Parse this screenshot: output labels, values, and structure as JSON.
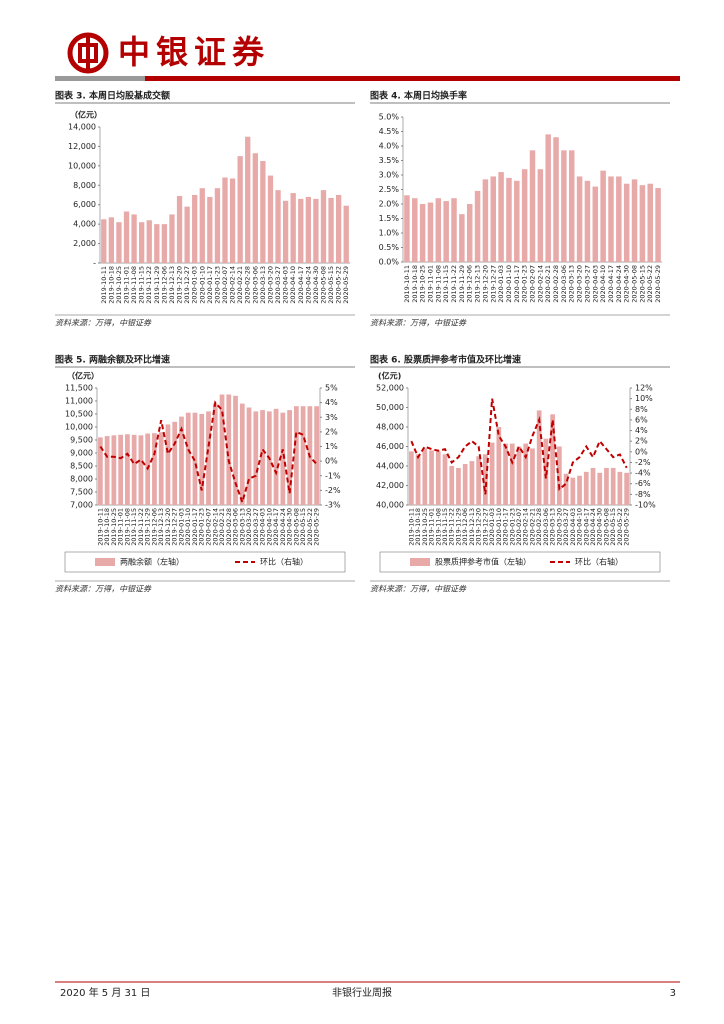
{
  "header": {
    "brand": "中银证券"
  },
  "chart_data": [
    {
      "type": "bar",
      "figure_title": "图表 3. 本周日均股基成交额",
      "unit": "（亿元）",
      "source": "资料来源：万得，中银证券",
      "color": "#e8a9a9",
      "categories": [
        "2019-10-11",
        "2019-10-18",
        "2019-10-25",
        "2019-11-01",
        "2019-11-08",
        "2019-11-15",
        "2019-11-22",
        "2019-11-29",
        "2019-12-06",
        "2019-12-13",
        "2019-12-20",
        "2019-12-27",
        "2020-01-03",
        "2020-01-10",
        "2020-01-17",
        "2020-01-23",
        "2020-02-07",
        "2020-02-14",
        "2020-02-21",
        "2020-02-28",
        "2020-03-06",
        "2020-03-13",
        "2020-03-20",
        "2020-03-27",
        "2020-04-03",
        "2020-04-10",
        "2020-04-17",
        "2020-04-24",
        "2020-04-30",
        "2020-05-08",
        "2020-05-15",
        "2020-05-22",
        "2020-05-29"
      ],
      "values": [
        4500,
        4700,
        4200,
        5300,
        5000,
        4200,
        4400,
        4000,
        4000,
        5000,
        6900,
        5800,
        7000,
        7700,
        6800,
        7700,
        8800,
        8700,
        11000,
        13000,
        11300,
        10500,
        9000,
        7500,
        6400,
        7200,
        6600,
        6800,
        6600,
        7500,
        6700,
        7000,
        5900
      ],
      "ylim": [
        0,
        14000
      ],
      "yticks": [
        {
          "value": 0,
          "label": "-"
        },
        {
          "value": 2000,
          "label": "2,000"
        },
        {
          "value": 4000,
          "label": "4,000"
        },
        {
          "value": 6000,
          "label": "6,000"
        },
        {
          "value": 8000,
          "label": "8,000"
        },
        {
          "value": 10000,
          "label": "10,000"
        },
        {
          "value": 12000,
          "label": "12,000"
        },
        {
          "value": 14000,
          "label": "14,000"
        }
      ]
    },
    {
      "type": "bar",
      "figure_title": "图表 4. 本周日均换手率",
      "source": "资料来源：万得，中银证券",
      "color": "#e8a9a9",
      "categories": [
        "2019-10-11",
        "2019-10-18",
        "2019-10-25",
        "2019-11-01",
        "2019-11-08",
        "2019-11-15",
        "2019-11-22",
        "2019-11-29",
        "2019-12-06",
        "2019-12-13",
        "2019-12-20",
        "2019-12-27",
        "2020-01-03",
        "2020-01-10",
        "2020-01-17",
        "2020-01-23",
        "2020-02-07",
        "2020-02-14",
        "2020-02-21",
        "2020-02-28",
        "2020-03-06",
        "2020-03-13",
        "2020-03-20",
        "2020-03-27",
        "2020-04-03",
        "2020-04-10",
        "2020-04-17",
        "2020-04-24",
        "2020-04-30",
        "2020-05-08",
        "2020-05-15",
        "2020-05-22",
        "2020-05-29"
      ],
      "values": [
        2.3,
        2.2,
        2.0,
        2.05,
        2.2,
        2.1,
        2.2,
        1.65,
        2.0,
        2.45,
        2.85,
        2.95,
        3.1,
        2.9,
        2.8,
        3.2,
        3.85,
        3.2,
        4.4,
        4.3,
        3.85,
        3.85,
        2.95,
        2.8,
        2.6,
        3.15,
        2.95,
        2.95,
        2.7,
        2.85,
        2.65,
        2.7,
        2.55
      ],
      "ylim": [
        0,
        5
      ],
      "yticks": [
        {
          "value": 0,
          "label": "0.0%"
        },
        {
          "value": 0.5,
          "label": "0.5%"
        },
        {
          "value": 1,
          "label": "1.0%"
        },
        {
          "value": 1.5,
          "label": "1.5%"
        },
        {
          "value": 2,
          "label": "2.0%"
        },
        {
          "value": 2.5,
          "label": "2.5%"
        },
        {
          "value": 3,
          "label": "3.0%"
        },
        {
          "value": 3.5,
          "label": "3.5%"
        },
        {
          "value": 4,
          "label": "4.0%"
        },
        {
          "value": 4.5,
          "label": "4.5%"
        },
        {
          "value": 5,
          "label": "5.0%"
        }
      ]
    },
    {
      "type": "bar_line",
      "figure_title": "图表 5. 两融余额及环比增速",
      "unit": "（亿元）",
      "source": "资料来源：万得，中银证券",
      "categories": [
        "2019-10-11",
        "2019-10-18",
        "2019-10-25",
        "2019-11-01",
        "2019-11-08",
        "2019-11-15",
        "2019-11-22",
        "2019-11-29",
        "2019-12-06",
        "2019-12-13",
        "2019-12-20",
        "2019-12-27",
        "2020-01-03",
        "2020-01-10",
        "2020-01-17",
        "2020-01-23",
        "2020-02-07",
        "2020-02-14",
        "2020-02-21",
        "2020-02-28",
        "2020-03-06",
        "2020-03-13",
        "2020-03-20",
        "2020-03-27",
        "2020-04-03",
        "2020-04-10",
        "2020-04-17",
        "2020-04-24",
        "2020-04-30",
        "2020-05-08",
        "2020-05-15",
        "2020-05-22",
        "2020-05-29"
      ],
      "series": [
        {
          "name": "两融余额（左轴）",
          "color": "#e8a9a9",
          "values": [
            9600,
            9650,
            9680,
            9700,
            9720,
            9700,
            9680,
            9750,
            9760,
            9800,
            10100,
            10200,
            10400,
            10550,
            10550,
            10500,
            10600,
            10900,
            11250,
            11250,
            11200,
            10900,
            10750,
            10600,
            10650,
            10600,
            10700,
            10550,
            10650,
            10800,
            10800,
            10800,
            10800
          ]
        },
        {
          "name": "环比（右轴）",
          "color": "#c00000",
          "axis": "y2",
          "values": [
            1,
            0.3,
            0.3,
            0.2,
            0.5,
            -0.2,
            0.1,
            -0.5,
            0.5,
            2.8,
            0.5,
            1.2,
            2.2,
            0.8,
            0,
            -2,
            1,
            4,
            3.5,
            0,
            -1.5,
            -2.8,
            -1.2,
            -1,
            0.8,
            0.2,
            -0.8,
            0.8,
            -2.2,
            2,
            1.8,
            0.3,
            -0.2
          ]
        }
      ],
      "ylim": [
        7000,
        11500
      ],
      "yticks": [
        {
          "value": 7000,
          "label": "7,000"
        },
        {
          "value": 7500,
          "label": "7,500"
        },
        {
          "value": 8000,
          "label": "8,000"
        },
        {
          "value": 8500,
          "label": "8,500"
        },
        {
          "value": 9000,
          "label": "9,000"
        },
        {
          "value": 9500,
          "label": "9,500"
        },
        {
          "value": 10000,
          "label": "10,000"
        },
        {
          "value": 10500,
          "label": "10,500"
        },
        {
          "value": 11000,
          "label": "11,000"
        },
        {
          "value": 11500,
          "label": "11,500"
        }
      ],
      "y2lim": [
        -3,
        5
      ],
      "y2ticks": [
        {
          "value": -3,
          "label": "-3%"
        },
        {
          "value": -2,
          "label": "-2%"
        },
        {
          "value": -1,
          "label": "-1%"
        },
        {
          "value": 0,
          "label": "0%"
        },
        {
          "value": 1,
          "label": "1%"
        },
        {
          "value": 2,
          "label": "2%"
        },
        {
          "value": 3,
          "label": "3%"
        },
        {
          "value": 4,
          "label": "4%"
        },
        {
          "value": 5,
          "label": "5%"
        }
      ]
    },
    {
      "type": "bar_line",
      "figure_title": "图表 6. 股票质押参考市值及环比增速",
      "unit": "(亿元)",
      "source": "资料来源：万得，中银证券",
      "categories": [
        "2019-10-11",
        "2019-10-18",
        "2019-10-25",
        "2019-11-01",
        "2019-11-08",
        "2019-11-15",
        "2019-11-22",
        "2019-11-29",
        "2019-12-06",
        "2019-12-13",
        "2019-12-20",
        "2019-12-27",
        "2020-01-03",
        "2020-01-10",
        "2020-01-17",
        "2020-01-23",
        "2020-02-07",
        "2020-02-14",
        "2020-02-21",
        "2020-02-28",
        "2020-03-06",
        "2020-03-13",
        "2020-03-20",
        "2020-03-27",
        "2020-04-03",
        "2020-04-10",
        "2020-04-17",
        "2020-04-24",
        "2020-04-30",
        "2020-05-08",
        "2020-05-15",
        "2020-05-22",
        "2020-05-29"
      ],
      "series": [
        {
          "name": "股票质押参考市值（左轴）",
          "color": "#e8a9a9",
          "values": [
            45500,
            45200,
            45800,
            45600,
            45500,
            45200,
            44000,
            43800,
            44200,
            44500,
            45000,
            45200,
            46400,
            48000,
            46300,
            46300,
            46000,
            46300,
            45800,
            49700,
            46800,
            49300,
            46000,
            43200,
            42800,
            43000,
            43400,
            43800,
            43300,
            43800,
            43800,
            43400,
            43300
          ]
        },
        {
          "name": "环比（右轴）",
          "color": "#c00000",
          "axis": "y2",
          "values": [
            2,
            -1,
            1,
            0.5,
            0.2,
            0.5,
            -2,
            -1,
            1,
            2,
            1,
            -8,
            10,
            3,
            1,
            -2,
            1,
            -1,
            3,
            6,
            -5,
            6,
            -7,
            -6,
            -2,
            -1,
            1,
            -1,
            2,
            0.5,
            -1,
            -0.5,
            -3
          ]
        }
      ],
      "ylim": [
        40000,
        52000
      ],
      "yticks": [
        {
          "value": 40000,
          "label": "40,000"
        },
        {
          "value": 42000,
          "label": "42,000"
        },
        {
          "value": 44000,
          "label": "44,000"
        },
        {
          "value": 46000,
          "label": "46,000"
        },
        {
          "value": 48000,
          "label": "48,000"
        },
        {
          "value": 50000,
          "label": "50,000"
        },
        {
          "value": 52000,
          "label": "52,000"
        }
      ],
      "y2lim": [
        -10,
        12
      ],
      "y2ticks": [
        {
          "value": -10,
          "label": "-10%"
        },
        {
          "value": -8,
          "label": "-8%"
        },
        {
          "value": -6,
          "label": "-6%"
        },
        {
          "value": -4,
          "label": "-4%"
        },
        {
          "value": -2,
          "label": "-2%"
        },
        {
          "value": 0,
          "label": "0%"
        },
        {
          "value": 2,
          "label": "2%"
        },
        {
          "value": 4,
          "label": "4%"
        },
        {
          "value": 6,
          "label": "6%"
        },
        {
          "value": 8,
          "label": "8%"
        },
        {
          "value": 10,
          "label": "10%"
        },
        {
          "value": 12,
          "label": "12%"
        }
      ]
    }
  ],
  "footer": {
    "date": "2020 年 5 月 31 日",
    "title": "非银行业周报",
    "page": "3"
  }
}
